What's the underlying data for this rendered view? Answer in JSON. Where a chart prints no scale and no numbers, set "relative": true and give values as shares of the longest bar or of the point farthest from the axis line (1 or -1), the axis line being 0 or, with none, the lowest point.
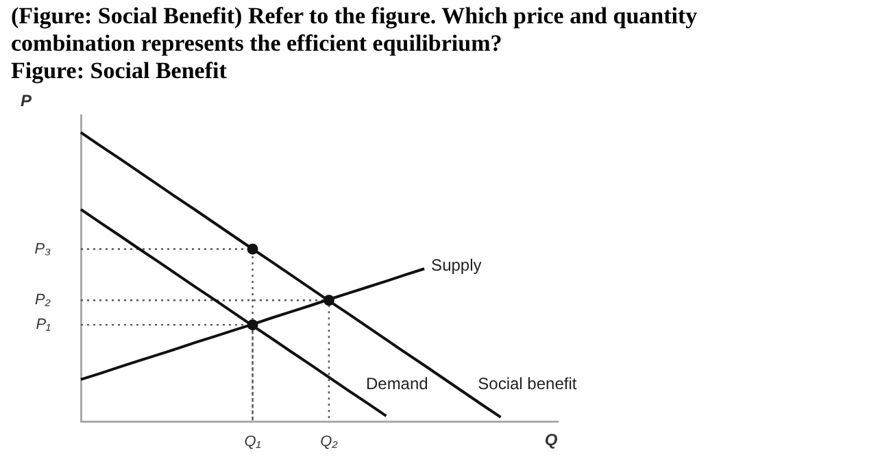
{
  "chart_data": {
    "type": "line",
    "title": "(Figure: Social Benefit) Refer to the figure. Which price and quantity combination represents the efficient equilibrium?",
    "subtitle": "Figure: Social Benefit",
    "xlabel": "Q",
    "ylabel": "P",
    "relative": true,
    "tick_labels": "x",
    "categories": [
      null,
      null,
      null,
      null,
      null,
      null,
      null,
      null,
      null,
      "Q₁",
      null,
      null,
      null,
      "Q₂",
      null,
      null,
      null,
      null,
      null,
      null,
      null,
      null,
      null,
      null,
      null,
      null
    ],
    "annotations": [
      "P₃",
      "P₂",
      "P₁"
    ],
    "legend": false,
    "marker": "none",
    "line_style": "solid",
    "series": [
      {
        "name": "Social benefit",
        "color": "#111111",
        "values": [
          1,
          0.955,
          0.911,
          0.866,
          0.821,
          0.776,
          0.732,
          0.687,
          0.642,
          0.597,
          0.553,
          0.508,
          0.463,
          0.418,
          0.374,
          0.329,
          0.284,
          0.239,
          0.195,
          0.15,
          0.105,
          0.06,
          0.016,
          null,
          null,
          null
        ]
      },
      {
        "name": "Demand",
        "color": "#111111",
        "values": [
          0.734,
          0.689,
          0.645,
          0.6,
          0.556,
          0.511,
          0.466,
          0.422,
          0.377,
          0.332,
          0.288,
          0.243,
          0.199,
          0.154,
          0.109,
          0.065,
          0.02,
          null,
          null,
          null,
          null,
          null,
          null,
          null,
          null,
          null
        ]
      },
      {
        "name": "Supply",
        "color": "#111111",
        "values": [
          0.146,
          0.167,
          0.189,
          0.21,
          0.231,
          0.252,
          0.274,
          0.295,
          0.316,
          0.337,
          0.359,
          0.38,
          0.401,
          0.423,
          0.444,
          0.465,
          0.486,
          0.508,
          0.529,
          null,
          null,
          null,
          null,
          null,
          null,
          null
        ]
      },
      {
        "type": "scatter",
        "marker": "circle",
        "line_style": "dotted",
        "color": "#111111",
        "values": [
          null,
          null,
          null,
          null,
          null,
          null,
          null,
          null,
          null,
          0.597,
          null,
          null,
          null,
          0.42,
          null,
          null,
          null,
          null,
          null,
          null,
          null,
          null,
          null,
          null,
          null,
          null
        ]
      },
      {
        "type": "scatter",
        "marker": "circle",
        "line_style": "dotted",
        "color": "#111111",
        "values": [
          null,
          null,
          null,
          null,
          null,
          null,
          null,
          null,
          null,
          0.335,
          null,
          null,
          null,
          null,
          null,
          null,
          null,
          null,
          null,
          null,
          null,
          null,
          null,
          null,
          null,
          null
        ]
      }
    ]
  }
}
